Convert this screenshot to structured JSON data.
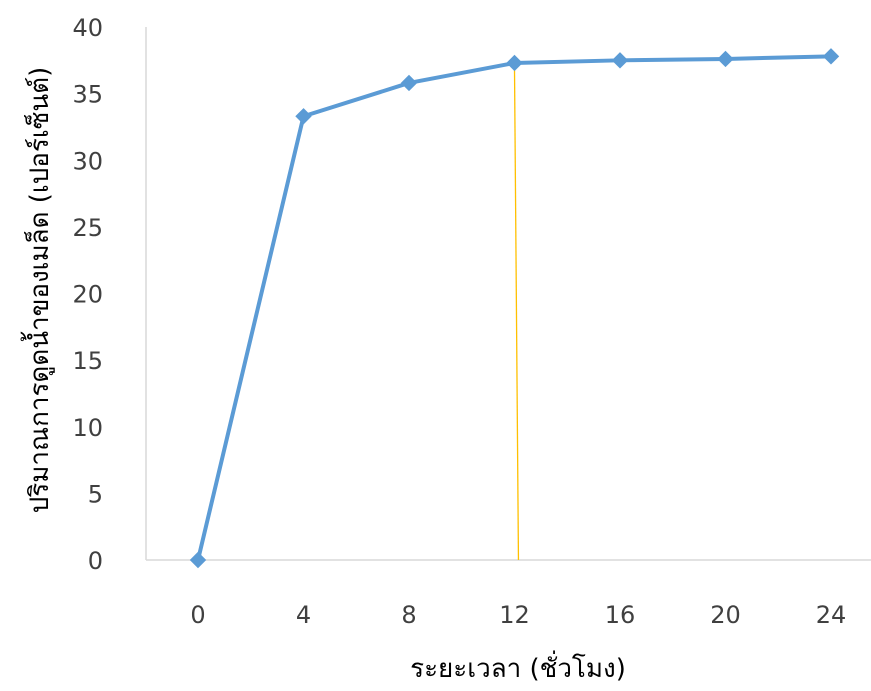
{
  "chart_data": {
    "type": "line",
    "xlabel": "ระยะเวลา (ชั่วโมง)",
    "ylabel": "ปริมาณการดูดน้ำของเมล็ด (เปอร์เซ็นต์)",
    "x": [
      0,
      4,
      8,
      12,
      16,
      20,
      24
    ],
    "x_tick_labels": [
      "0",
      "4",
      "8",
      "12",
      "16",
      "20",
      "24"
    ],
    "y_tick_labels": [
      "0",
      "5",
      "10",
      "15",
      "20",
      "25",
      "30",
      "35",
      "40"
    ],
    "ylim": [
      0,
      40
    ],
    "series": [
      {
        "values": [
          0,
          33.3,
          35.8,
          37.3,
          37.5,
          37.6,
          37.8
        ]
      }
    ],
    "reference_line": {
      "x": 12.15
    },
    "series_color": "#5b9bd5",
    "reference_line_color": "#ffc000",
    "axis_color": "#d9d9d9",
    "marker": "diamond",
    "grid": false,
    "legend": "none"
  }
}
